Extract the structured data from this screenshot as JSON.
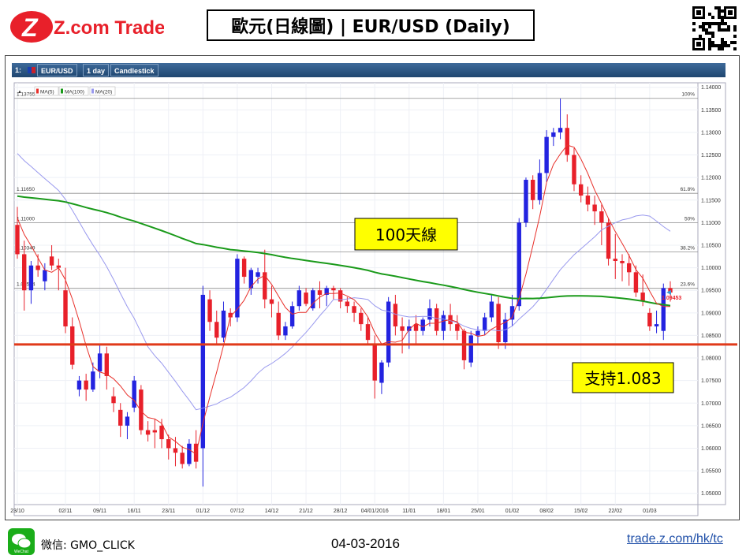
{
  "header": {
    "logo_text": "Z.com Trade",
    "title": "歐元(日線圖) | EUR/USD  (Daily)"
  },
  "toolbar": {
    "index": "1:",
    "symbol": "EUR/USD",
    "timeframe": "1 day",
    "chart_type": "Candlestick"
  },
  "legend": [
    {
      "label": "MA(5)",
      "color": "#e8302a"
    },
    {
      "label": "MA(100)",
      "color": "#1a9a1a"
    },
    {
      "label": "MA(20)",
      "color": "#9999ee"
    }
  ],
  "annotations": {
    "ma100_label": "100天線",
    "support_label": "支持1.083"
  },
  "footer": {
    "wechat_icon_label": "WeChat",
    "wechat": "微信: GMO_CLICK",
    "date": "04-03-2016",
    "link": "trade.z.com/hk/tc"
  },
  "colors": {
    "up_candle": "#2323e0",
    "down_candle": "#e8202a",
    "support_line": "#e03a1a",
    "annotation_bg": "#ffff00"
  },
  "chart_data": {
    "type": "candlestick",
    "symbol": "EUR/USD",
    "timeframe": "1 day",
    "ylim": [
      1.0475,
      1.141
    ],
    "y_ticks": [
      1.14,
      1.135,
      1.13,
      1.125,
      1.12,
      1.115,
      1.11,
      1.105,
      1.1,
      1.095,
      1.09,
      1.085,
      1.08,
      1.075,
      1.07,
      1.065,
      1.06,
      1.055,
      1.05
    ],
    "y_tick_labels": [
      "1.14000",
      "1.13500",
      "1.13000",
      "1.12500",
      "1.12000",
      "1.11500",
      "1.11000",
      "1.10500",
      "1.10000",
      "1.09500",
      "1.09000",
      "1.08500",
      "1.08000",
      "1.07500",
      "1.07000",
      "1.06500",
      "1.06000",
      "1.05500",
      "1.05000"
    ],
    "x_tick_labels": [
      "23/10",
      "02/11",
      "09/11",
      "16/11",
      "23/11",
      "01/12",
      "07/12",
      "14/12",
      "21/12",
      "28/12",
      "04/01/2016",
      "11/01",
      "18/01",
      "25/01",
      "01/02",
      "08/02",
      "15/02",
      "22/02",
      "01/03"
    ],
    "x_tick_index": [
      0,
      7,
      12,
      17,
      22,
      27,
      32,
      37,
      42,
      47,
      52,
      57,
      62,
      67,
      72,
      77,
      82,
      87,
      92
    ],
    "fib_levels": [
      {
        "label": "100%",
        "price_label": "1.13755",
        "value": 1.13755
      },
      {
        "label": "61.8%",
        "price_label": "1.11650",
        "value": 1.1165
      },
      {
        "label": "50%",
        "price_label": "1.11000",
        "value": 1.11
      },
      {
        "label": "38.2%",
        "price_label": "1.10349",
        "value": 1.10349
      },
      {
        "label": "23.6%",
        "price_label": "1.09544",
        "value": 1.09544
      }
    ],
    "support_level": 1.083,
    "last_price_label": "1.09453",
    "candles": [
      [
        1.1095,
        1.1135,
        1.102,
        1.103
      ],
      [
        1.103,
        1.106,
        1.0905,
        1.095
      ],
      [
        1.095,
        1.1015,
        1.092,
        1.1005
      ],
      [
        1.1005,
        1.103,
        1.098,
        1.0995
      ],
      [
        1.097,
        1.101,
        1.095,
        1.0995
      ],
      [
        1.1025,
        1.105,
        1.0995,
        1.1005
      ],
      [
        1.1005,
        1.102,
        1.095,
        1.1
      ],
      [
        1.095,
        1.1,
        1.0855,
        1.087
      ],
      [
        1.087,
        1.089,
        1.0775,
        1.0785
      ],
      [
        1.073,
        1.076,
        1.0715,
        1.075
      ],
      [
        1.075,
        1.0765,
        1.0705,
        1.073
      ],
      [
        1.073,
        1.079,
        1.0725,
        1.077
      ],
      [
        1.077,
        1.083,
        1.0755,
        1.081
      ],
      [
        1.081,
        1.0825,
        1.073,
        1.076
      ],
      [
        1.0715,
        1.0735,
        1.068,
        1.07
      ],
      [
        1.0685,
        1.07,
        1.0625,
        1.065
      ],
      [
        1.065,
        1.068,
        1.062,
        1.067
      ],
      [
        1.069,
        1.076,
        1.068,
        1.075
      ],
      [
        1.073,
        1.074,
        1.063,
        1.064
      ],
      [
        1.064,
        1.066,
        1.0615,
        1.063
      ],
      [
        1.064,
        1.0665,
        1.06,
        1.0635
      ],
      [
        1.065,
        1.0665,
        1.06,
        1.062
      ],
      [
        1.062,
        1.063,
        1.0575,
        1.06
      ],
      [
        1.06,
        1.0625,
        1.056,
        1.059
      ],
      [
        1.059,
        1.0605,
        1.0555,
        1.0565
      ],
      [
        1.0565,
        1.062,
        1.056,
        1.061
      ],
      [
        1.061,
        1.064,
        1.0555,
        1.057
      ],
      [
        1.06,
        1.096,
        1.0515,
        1.094
      ],
      [
        1.093,
        1.095,
        1.086,
        1.088
      ],
      [
        1.088,
        1.0905,
        1.083,
        1.0845
      ],
      [
        1.0845,
        1.0925,
        1.0835,
        1.0905
      ],
      [
        1.09,
        1.091,
        1.087,
        1.089
      ],
      [
        1.089,
        1.103,
        1.088,
        1.102
      ],
      [
        1.102,
        1.1025,
        1.0965,
        1.098
      ],
      [
        1.0955,
        1.1,
        1.094,
        1.0995
      ],
      [
        1.098,
        1.1,
        1.0965,
        1.099
      ],
      [
        1.099,
        1.104,
        1.091,
        1.093
      ],
      [
        1.093,
        1.096,
        1.089,
        1.092
      ],
      [
        1.09,
        1.0925,
        1.084,
        1.085
      ],
      [
        1.085,
        1.088,
        1.084,
        1.087
      ],
      [
        1.087,
        1.0925,
        1.0865,
        1.0915
      ],
      [
        1.0915,
        1.096,
        1.0905,
        1.095
      ],
      [
        1.0945,
        1.0955,
        1.0915,
        1.092
      ],
      [
        1.091,
        1.0955,
        1.0905,
        1.095
      ],
      [
        1.095,
        1.097,
        1.091,
        1.094
      ],
      [
        1.094,
        1.096,
        1.0915,
        1.0955
      ],
      [
        1.0955,
        1.096,
        1.093,
        1.095
      ],
      [
        1.095,
        1.0955,
        1.091,
        1.0925
      ],
      [
        1.0925,
        1.0935,
        1.09,
        1.0915
      ],
      [
        1.0915,
        1.0925,
        1.088,
        1.09
      ],
      [
        1.09,
        1.091,
        1.086,
        1.0875
      ],
      [
        1.0875,
        1.089,
        1.083,
        1.084
      ],
      [
        1.083,
        1.085,
        1.071,
        1.075
      ],
      [
        1.0745,
        1.0795,
        1.072,
        1.079
      ],
      [
        1.079,
        1.0935,
        1.078,
        1.0925
      ],
      [
        1.092,
        1.094,
        1.085,
        1.087
      ],
      [
        1.087,
        1.089,
        1.081,
        1.086
      ],
      [
        1.086,
        1.0885,
        1.082,
        1.087
      ],
      [
        1.0875,
        1.0895,
        1.083,
        1.086
      ],
      [
        1.086,
        1.089,
        1.085,
        1.0885
      ],
      [
        1.0885,
        1.093,
        1.087,
        1.091
      ],
      [
        1.091,
        1.092,
        1.085,
        1.086
      ],
      [
        1.086,
        1.0905,
        1.084,
        1.0895
      ],
      [
        1.0895,
        1.092,
        1.086,
        1.0875
      ],
      [
        1.0875,
        1.0895,
        1.084,
        1.086
      ],
      [
        1.086,
        1.0865,
        1.0775,
        1.0795
      ],
      [
        1.079,
        1.086,
        1.078,
        1.085
      ],
      [
        1.085,
        1.087,
        1.083,
        1.086
      ],
      [
        1.086,
        1.09,
        1.085,
        1.089
      ],
      [
        1.089,
        1.094,
        1.088,
        1.0925
      ],
      [
        1.092,
        1.0935,
        1.082,
        1.0835
      ],
      [
        1.0835,
        1.09,
        1.082,
        1.0885
      ],
      [
        1.0885,
        1.094,
        1.087,
        1.0915
      ],
      [
        1.0915,
        1.111,
        1.0905,
        1.11
      ],
      [
        1.11,
        1.12,
        1.109,
        1.1195
      ],
      [
        1.1195,
        1.1205,
        1.113,
        1.115
      ],
      [
        1.115,
        1.124,
        1.114,
        1.121
      ],
      [
        1.121,
        1.1305,
        1.119,
        1.129
      ],
      [
        1.129,
        1.131,
        1.127,
        1.13
      ],
      [
        1.13,
        1.1375,
        1.1285,
        1.131
      ],
      [
        1.131,
        1.134,
        1.1235,
        1.125
      ],
      [
        1.125,
        1.1265,
        1.117,
        1.1185
      ],
      [
        1.1185,
        1.1205,
        1.1145,
        1.116
      ],
      [
        1.116,
        1.118,
        1.1125,
        1.114
      ],
      [
        1.114,
        1.116,
        1.1095,
        1.1125
      ],
      [
        1.1125,
        1.114,
        1.105,
        1.11
      ],
      [
        1.11,
        1.111,
        1.1005,
        1.102
      ],
      [
        1.102,
        1.1075,
        1.0975,
        1.1015
      ],
      [
        1.1015,
        1.103,
        1.097,
        1.101
      ],
      [
        1.101,
        1.103,
        1.096,
        1.099
      ],
      [
        1.099,
        1.1005,
        1.0935,
        1.0945
      ],
      [
        1.0945,
        1.0985,
        1.0915,
        1.0925
      ],
      [
        1.09,
        1.091,
        1.086,
        1.087
      ],
      [
        1.087,
        1.0905,
        1.0855,
        1.0875
      ],
      [
        1.086,
        1.0965,
        1.084,
        1.0955
      ],
      [
        1.0955,
        1.097,
        1.0925,
        1.0945
      ]
    ]
  }
}
